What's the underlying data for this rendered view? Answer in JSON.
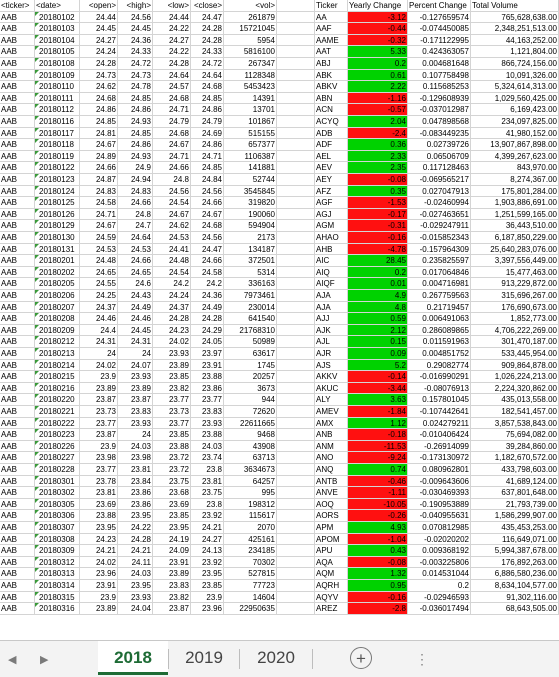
{
  "headers": {
    "left": [
      "<ticker>",
      "<date>",
      "<open>",
      "<high>",
      "<low>",
      "<close>",
      "<vol>"
    ],
    "right": [
      "Ticker",
      "Yearly Change",
      "Percent Change",
      "Total Volume"
    ]
  },
  "rows": [
    {
      "l": [
        "AAB",
        "20180102",
        "24.44",
        "24.56",
        "24.44",
        "24.47",
        "261879"
      ],
      "t": "AA",
      "y": "-3.12",
      "p": "-0.127659574",
      "v": "765,628,638.00"
    },
    {
      "l": [
        "AAB",
        "20180103",
        "24.45",
        "24.45",
        "24.22",
        "24.28",
        "15721045"
      ],
      "t": "AAF",
      "y": "-0.44",
      "p": "-0.074450085",
      "v": "2,348,251,513.00"
    },
    {
      "l": [
        "AAB",
        "20180104",
        "24.27",
        "24.36",
        "24.27",
        "24.28",
        "5954"
      ],
      "t": "AAME",
      "y": "-0.32",
      "p": "-0.171122995",
      "v": "44,163,252.00"
    },
    {
      "l": [
        "AAB",
        "20180105",
        "24.24",
        "24.33",
        "24.22",
        "24.33",
        "5816100"
      ],
      "t": "AAT",
      "y": "5.33",
      "p": "0.424363057",
      "v": "1,121,804.00"
    },
    {
      "l": [
        "AAB",
        "20180108",
        "24.28",
        "24.72",
        "24.28",
        "24.72",
        "267347"
      ],
      "t": "ABJ",
      "y": "0.2",
      "p": "0.004681648",
      "v": "866,724,156.00"
    },
    {
      "l": [
        "AAB",
        "20180109",
        "24.73",
        "24.73",
        "24.64",
        "24.64",
        "1128348"
      ],
      "t": "ABK",
      "y": "0.61",
      "p": "0.107758498",
      "v": "10,091,326.00"
    },
    {
      "l": [
        "AAB",
        "20180110",
        "24.62",
        "24.78",
        "24.57",
        "24.68",
        "5453423"
      ],
      "t": "ABKV",
      "y": "2.22",
      "p": "0.115685253",
      "v": "5,324,614,313.00"
    },
    {
      "l": [
        "AAB",
        "20180111",
        "24.68",
        "24.85",
        "24.68",
        "24.85",
        "14391"
      ],
      "t": "ABN",
      "y": "-1.16",
      "p": "-0.129608939",
      "v": "1,029,560,425.00"
    },
    {
      "l": [
        "AAB",
        "20180112",
        "24.86",
        "24.86",
        "24.71",
        "24.86",
        "13701"
      ],
      "t": "ACN",
      "y": "-0.57",
      "p": "-0.037012987",
      "v": "6,169,423.00"
    },
    {
      "l": [
        "AAB",
        "20180116",
        "24.85",
        "24.93",
        "24.79",
        "24.79",
        "101867"
      ],
      "t": "ACYQ",
      "y": "2.04",
      "p": "0.047898568",
      "v": "234,097,825.00"
    },
    {
      "l": [
        "AAB",
        "20180117",
        "24.81",
        "24.85",
        "24.68",
        "24.69",
        "515155"
      ],
      "t": "ADB",
      "y": "-2.4",
      "p": "-0.083449235",
      "v": "41,980,152.00"
    },
    {
      "l": [
        "AAB",
        "20180118",
        "24.67",
        "24.86",
        "24.67",
        "24.86",
        "657377"
      ],
      "t": "ADF",
      "y": "0.36",
      "p": "0.02739726",
      "v": "13,907,867,898.00"
    },
    {
      "l": [
        "AAB",
        "20180119",
        "24.89",
        "24.93",
        "24.71",
        "24.71",
        "1106387"
      ],
      "t": "AEL",
      "y": "2.33",
      "p": "0.06506709",
      "v": "4,399,267,623.00"
    },
    {
      "l": [
        "AAB",
        "20180122",
        "24.66",
        "24.9",
        "24.66",
        "24.85",
        "141881"
      ],
      "t": "AEV",
      "y": "2.35",
      "p": "0.117128463",
      "v": "843,970.00"
    },
    {
      "l": [
        "AAB",
        "20180123",
        "24.87",
        "24.94",
        "24.8",
        "24.84",
        "52744"
      ],
      "t": "AEY",
      "y": "-0.08",
      "p": "-0.069565217",
      "v": "8,274,367.00"
    },
    {
      "l": [
        "AAB",
        "20180124",
        "24.83",
        "24.83",
        "24.56",
        "24.56",
        "3545845"
      ],
      "t": "AFZ",
      "y": "0.35",
      "p": "0.027047913",
      "v": "175,801,284.00"
    },
    {
      "l": [
        "AAB",
        "20180125",
        "24.58",
        "24.66",
        "24.54",
        "24.66",
        "319820"
      ],
      "t": "AGF",
      "y": "-1.53",
      "p": "-0.02460994",
      "v": "1,903,886,691.00"
    },
    {
      "l": [
        "AAB",
        "20180126",
        "24.71",
        "24.8",
        "24.67",
        "24.67",
        "190060"
      ],
      "t": "AGJ",
      "y": "-0.17",
      "p": "-0.027463651",
      "v": "1,251,599,165.00"
    },
    {
      "l": [
        "AAB",
        "20180129",
        "24.67",
        "24.7",
        "24.62",
        "24.68",
        "594904"
      ],
      "t": "AGM",
      "y": "-0.31",
      "p": "-0.029247911",
      "v": "36,443,510.00"
    },
    {
      "l": [
        "AAB",
        "20180130",
        "24.59",
        "24.64",
        "24.53",
        "24.56",
        "2173"
      ],
      "t": "AHAO",
      "y": "-0.16",
      "p": "-0.015852343",
      "v": "6,187,850,229.00"
    },
    {
      "l": [
        "AAB",
        "20180131",
        "24.53",
        "24.53",
        "24.41",
        "24.47",
        "134187"
      ],
      "t": "AHB",
      "y": "-4.78",
      "p": "-0.157964309",
      "v": "25,640,283,076.00"
    },
    {
      "l": [
        "AAB",
        "20180201",
        "24.48",
        "24.66",
        "24.48",
        "24.66",
        "372501"
      ],
      "t": "AIC",
      "y": "28.45",
      "p": "0.235825597",
      "v": "3,397,556,449.00"
    },
    {
      "l": [
        "AAB",
        "20180202",
        "24.65",
        "24.65",
        "24.54",
        "24.58",
        "5314"
      ],
      "t": "AIQ",
      "y": "0.2",
      "p": "0.017064846",
      "v": "15,477,463.00"
    },
    {
      "l": [
        "AAB",
        "20180205",
        "24.55",
        "24.6",
        "24.2",
        "24.2",
        "336163"
      ],
      "t": "AIQF",
      "y": "0.01",
      "p": "0.004716981",
      "v": "913,229,872.00"
    },
    {
      "l": [
        "AAB",
        "20180206",
        "24.25",
        "24.43",
        "24.24",
        "24.36",
        "7973461"
      ],
      "t": "AJA",
      "y": "4.9",
      "p": "0.267759563",
      "v": "315,696,267.00"
    },
    {
      "l": [
        "AAB",
        "20180207",
        "24.37",
        "24.49",
        "24.37",
        "24.49",
        "230014"
      ],
      "t": "AJA",
      "y": "4.8",
      "p": "0.21719457",
      "v": "176,690,673.00"
    },
    {
      "l": [
        "AAB",
        "20180208",
        "24.46",
        "24.46",
        "24.28",
        "24.28",
        "641540"
      ],
      "t": "AJJ",
      "y": "0.59",
      "p": "0.006491063",
      "v": "1,852,773.00"
    },
    {
      "l": [
        "AAB",
        "20180209",
        "24.4",
        "24.45",
        "24.23",
        "24.29",
        "21768310"
      ],
      "t": "AJK",
      "y": "2.12",
      "p": "0.286089865",
      "v": "4,706,222,269.00"
    },
    {
      "l": [
        "AAB",
        "20180212",
        "24.31",
        "24.31",
        "24.02",
        "24.05",
        "50989"
      ],
      "t": "AJL",
      "y": "0.15",
      "p": "0.011591963",
      "v": "301,470,187.00"
    },
    {
      "l": [
        "AAB",
        "20180213",
        "24",
        "24",
        "23.93",
        "23.97",
        "63617"
      ],
      "t": "AJR",
      "y": "0.09",
      "p": "0.004851752",
      "v": "533,445,954.00"
    },
    {
      "l": [
        "AAB",
        "20180214",
        "24.02",
        "24.07",
        "23.89",
        "23.91",
        "1745"
      ],
      "t": "AJS",
      "y": "5.2",
      "p": "0.29082774",
      "v": "909,864,878.00"
    },
    {
      "l": [
        "AAB",
        "20180215",
        "23.9",
        "23.93",
        "23.85",
        "23.88",
        "20257"
      ],
      "t": "AKKV",
      "y": "-0.14",
      "p": "-0.016990291",
      "v": "1,026,224,213.00"
    },
    {
      "l": [
        "AAB",
        "20180216",
        "23.89",
        "23.89",
        "23.82",
        "23.86",
        "3673"
      ],
      "t": "AKUC",
      "y": "-3.44",
      "p": "-0.08076913",
      "v": "2,224,320,862.00"
    },
    {
      "l": [
        "AAB",
        "20180220",
        "23.87",
        "23.87",
        "23.77",
        "23.77",
        "944"
      ],
      "t": "ALY",
      "y": "3.63",
      "p": "0.157801045",
      "v": "435,013,558.00"
    },
    {
      "l": [
        "AAB",
        "20180221",
        "23.73",
        "23.83",
        "23.73",
        "23.83",
        "72620"
      ],
      "t": "AMEV",
      "y": "-1.84",
      "p": "-0.107442641",
      "v": "182,541,457.00"
    },
    {
      "l": [
        "AAB",
        "20180222",
        "23.77",
        "23.93",
        "23.77",
        "23.93",
        "22611665"
      ],
      "t": "AMX",
      "y": "1.12",
      "p": "0.024279211",
      "v": "3,857,538,843.00"
    },
    {
      "l": [
        "AAB",
        "20180223",
        "23.87",
        "24",
        "23.85",
        "23.88",
        "9468"
      ],
      "t": "ANB",
      "y": "-0.18",
      "p": "-0.010406424",
      "v": "75,694,082.00"
    },
    {
      "l": [
        "AAB",
        "20180226",
        "23.9",
        "24.03",
        "23.88",
        "24.03",
        "43908"
      ],
      "t": "ANM",
      "y": "-11.53",
      "p": "-0.26914099",
      "v": "39,284,860.00"
    },
    {
      "l": [
        "AAB",
        "20180227",
        "23.98",
        "23.98",
        "23.72",
        "23.74",
        "63713"
      ],
      "t": "ANO",
      "y": "-9.24",
      "p": "-0.173130972",
      "v": "1,182,670,572.00"
    },
    {
      "l": [
        "AAB",
        "20180228",
        "23.77",
        "23.81",
        "23.72",
        "23.8",
        "3634673"
      ],
      "t": "ANQ",
      "y": "0.74",
      "p": "0.080962801",
      "v": "433,798,603.00"
    },
    {
      "l": [
        "AAB",
        "20180301",
        "23.78",
        "23.84",
        "23.75",
        "23.81",
        "64257"
      ],
      "t": "ANTB",
      "y": "-0.46",
      "p": "-0.009643606",
      "v": "41,689,124.00"
    },
    {
      "l": [
        "AAB",
        "20180302",
        "23.81",
        "23.86",
        "23.68",
        "23.75",
        "995"
      ],
      "t": "ANVE",
      "y": "-1.11",
      "p": "-0.030469393",
      "v": "637,801,648.00"
    },
    {
      "l": [
        "AAB",
        "20180305",
        "23.69",
        "23.86",
        "23.69",
        "23.8",
        "198312"
      ],
      "t": "AOQ",
      "y": "-10.05",
      "p": "-0.190953889",
      "v": "21,793,739.00"
    },
    {
      "l": [
        "AAB",
        "20180306",
        "23.88",
        "23.95",
        "23.85",
        "23.92",
        "115617"
      ],
      "t": "AORS",
      "y": "-0.26",
      "p": "-0.040955631",
      "v": "1,586,299,907.00"
    },
    {
      "l": [
        "AAB",
        "20180307",
        "23.95",
        "24.22",
        "23.95",
        "24.21",
        "2070"
      ],
      "t": "APM",
      "y": "4.93",
      "p": "0.070812985",
      "v": "435,453,253.00"
    },
    {
      "l": [
        "AAB",
        "20180308",
        "24.23",
        "24.28",
        "24.19",
        "24.27",
        "425161"
      ],
      "t": "APOM",
      "y": "-1.04",
      "p": "-0.02020202",
      "v": "116,649,071.00"
    },
    {
      "l": [
        "AAB",
        "20180309",
        "24.21",
        "24.21",
        "24.09",
        "24.13",
        "234185"
      ],
      "t": "APU",
      "y": "0.43",
      "p": "0.009368192",
      "v": "5,994,387,678.00"
    },
    {
      "l": [
        "AAB",
        "20180312",
        "24.02",
        "24.11",
        "23.91",
        "23.92",
        "70302"
      ],
      "t": "AQA",
      "y": "-0.08",
      "p": "-0.003225806",
      "v": "176,892,263.00"
    },
    {
      "l": [
        "AAB",
        "20180313",
        "23.96",
        "24.03",
        "23.89",
        "23.95",
        "527815"
      ],
      "t": "AQM",
      "y": "1.32",
      "p": "0.014531044",
      "v": "6,886,580,236.00"
    },
    {
      "l": [
        "AAB",
        "20180314",
        "23.91",
        "23.95",
        "23.83",
        "23.85",
        "77723"
      ],
      "t": "AQRH",
      "y": "0.95",
      "p": "0.2",
      "v": "8,634,104,577.00"
    },
    {
      "l": [
        "AAB",
        "20180315",
        "23.9",
        "23.93",
        "23.82",
        "23.9",
        "14604"
      ],
      "t": "AQYV",
      "y": "-0.16",
      "p": "-0.02946593",
      "v": "91,302,116.00"
    },
    {
      "l": [
        "AAB",
        "20180316",
        "23.89",
        "24.04",
        "23.87",
        "23.96",
        "22950635"
      ],
      "t": "AREZ",
      "y": "-2.8",
      "p": "-0.036017494",
      "v": "68,643,505.00"
    }
  ],
  "tabs": [
    "2018",
    "2019",
    "2020"
  ],
  "active_tab": "2018",
  "colors": {
    "positive": "#00d200",
    "negative": "#ff1010",
    "tab_active": "#1e6b35"
  },
  "icons": {
    "prev": "nav-left-icon",
    "next": "nav-right-icon",
    "add": "add-sheet-icon"
  }
}
